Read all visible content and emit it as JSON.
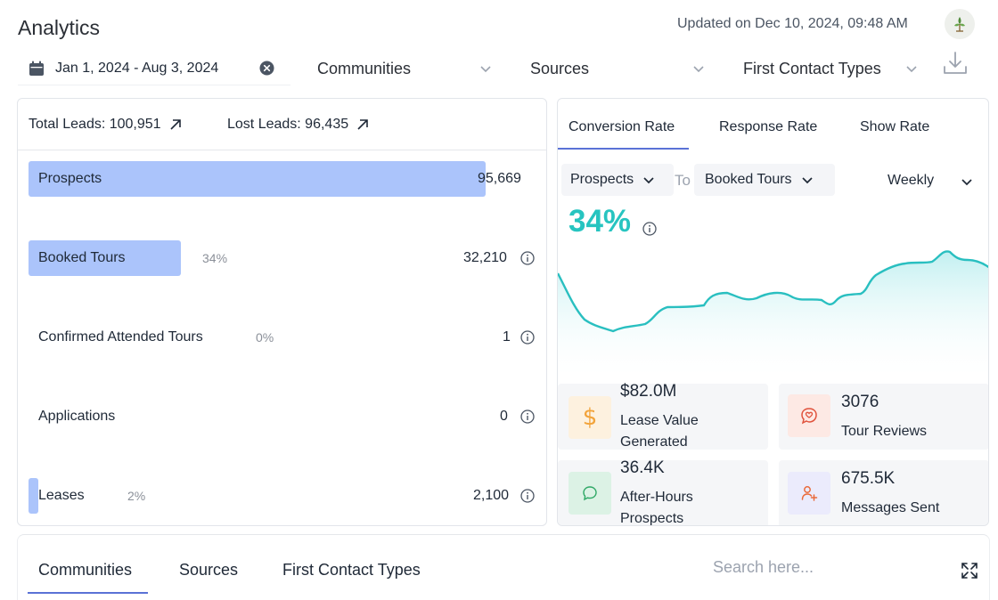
{
  "header": {
    "title": "Analytics",
    "updated": "Updated on Dec 10, 2024, 09:48 AM"
  },
  "filters": {
    "date_range": "Jan 1, 2024 - Aug 3, 2024",
    "communities": "Communities",
    "sources": "Sources",
    "first_contact_types": "First Contact Types"
  },
  "funnel": {
    "total_leads": "Total Leads: 100,951",
    "lost_leads": "Lost Leads: 96,435",
    "stages": [
      {
        "label": "Prospects",
        "pct": "",
        "value": "95,669",
        "fill_pct": 90
      },
      {
        "label": "Booked Tours",
        "pct": "34%",
        "value": "32,210",
        "fill_pct": 30
      },
      {
        "label": "Confirmed Attended Tours",
        "pct": "0%",
        "value": "1",
        "fill_pct": 0
      },
      {
        "label": "Applications",
        "pct": "",
        "value": "0",
        "fill_pct": 0
      },
      {
        "label": "Leases",
        "pct": "2%",
        "value": "2,100",
        "fill_pct": 2
      }
    ]
  },
  "conversion": {
    "tabs": [
      "Conversion Rate",
      "Response Rate",
      "Show Rate"
    ],
    "from": "Prospects",
    "to_label": "To",
    "to": "Booked Tours",
    "period": "Weekly",
    "rate": "34%"
  },
  "stats": [
    {
      "value": "$82.0M",
      "label": "Lease Value Generated",
      "icon": "dollar-icon"
    },
    {
      "value": "3076",
      "label": "Tour Reviews",
      "icon": "review-heart-icon"
    },
    {
      "value": "36.4K",
      "label": "After-Hours Prospects",
      "icon": "chat-bubble-icon"
    },
    {
      "value": "675.5K",
      "label": "Messages Sent",
      "icon": "user-plus-icon"
    }
  ],
  "bottom": {
    "tabs": [
      "Communities",
      "Sources",
      "First Contact Types"
    ],
    "search_placeholder": "Search here..."
  },
  "colors": {
    "accent": "#5a72d6",
    "bar": "#abc4fb",
    "teal": "#27c4c0"
  }
}
